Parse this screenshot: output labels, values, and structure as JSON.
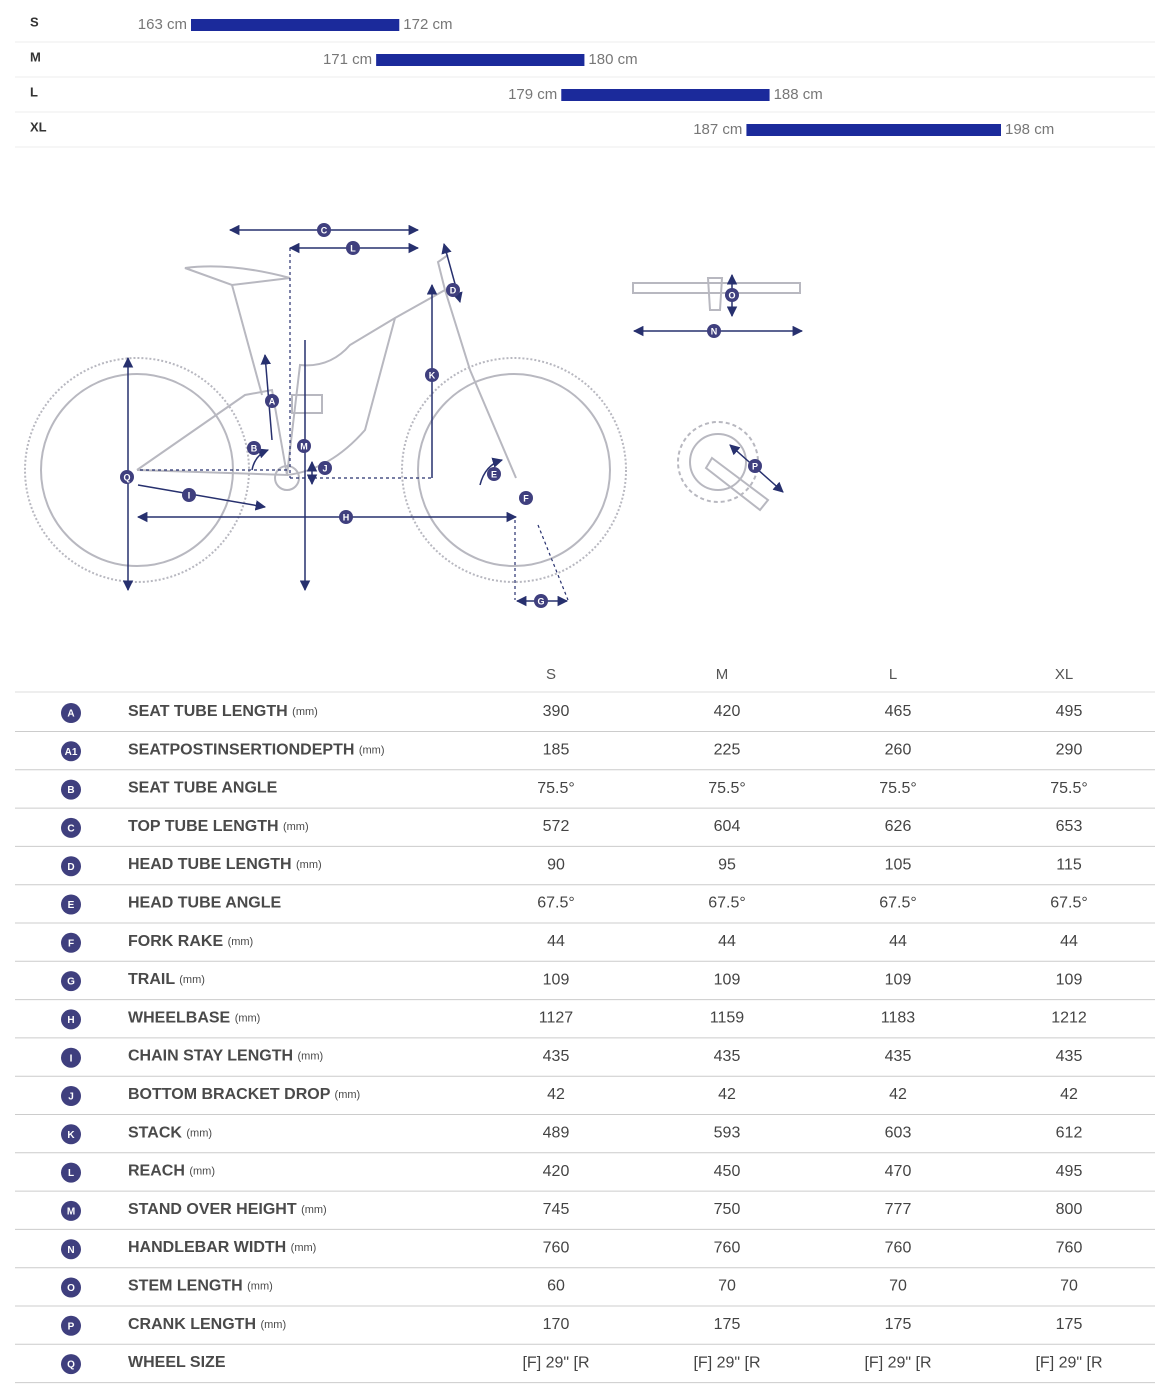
{
  "size_chart": {
    "rows": [
      {
        "size": "S",
        "min": 163,
        "max": 172,
        "min_label": "163 cm",
        "max_label": "172 cm"
      },
      {
        "size": "M",
        "min": 171,
        "max": 180,
        "min_label": "171 cm",
        "max_label": "180 cm"
      },
      {
        "size": "L",
        "min": 179,
        "max": 188,
        "min_label": "179 cm",
        "max_label": "188 cm"
      },
      {
        "size": "XL",
        "min": 187,
        "max": 198,
        "min_label": "187 cm",
        "max_label": "198 cm"
      }
    ]
  },
  "table": {
    "header": [
      "S",
      "M",
      "L",
      "XL"
    ],
    "rows": [
      {
        "code": "A",
        "name": "SEAT TUBE LENGTH",
        "unit": "(mm)",
        "values": [
          "390",
          "420",
          "465",
          "495"
        ]
      },
      {
        "code": "A1",
        "name": "SEATPOSTINSERTIONDEPTH",
        "unit": "(mm)",
        "values": [
          "185",
          "225",
          "260",
          "290"
        ]
      },
      {
        "code": "B",
        "name": "SEAT TUBE ANGLE",
        "values": [
          "75.5°",
          "75.5°",
          "75.5°",
          "75.5°"
        ]
      },
      {
        "code": "C",
        "name": "TOP TUBE LENGTH",
        "unit": "(mm)",
        "values": [
          "572",
          "604",
          "626",
          "653"
        ]
      },
      {
        "code": "D",
        "name": "HEAD TUBE LENGTH",
        "unit": "(mm)",
        "values": [
          "90",
          "95",
          "105",
          "115"
        ]
      },
      {
        "code": "E",
        "name": "HEAD TUBE ANGLE",
        "values": [
          "67.5°",
          "67.5°",
          "67.5°",
          "67.5°"
        ]
      },
      {
        "code": "F",
        "name": "FORK RAKE",
        "unit": "(mm)",
        "values": [
          "44",
          "44",
          "44",
          "44"
        ]
      },
      {
        "code": "G",
        "name": "TRAIL",
        "unit": "(mm)",
        "values": [
          "109",
          "109",
          "109",
          "109"
        ]
      },
      {
        "code": "H",
        "name": "WHEELBASE",
        "unit": "(mm)",
        "values": [
          "1127",
          "1159",
          "1183",
          "1212"
        ]
      },
      {
        "code": "I",
        "name": "CHAIN STAY LENGTH",
        "unit": "(mm)",
        "values": [
          "435",
          "435",
          "435",
          "435"
        ]
      },
      {
        "code": "J",
        "name": "BOTTOM BRACKET DROP",
        "unit": "(mm)",
        "values": [
          "42",
          "42",
          "42",
          "42"
        ]
      },
      {
        "code": "K",
        "name": "STACK",
        "unit": "(mm)",
        "values": [
          "489",
          "593",
          "603",
          "612"
        ]
      },
      {
        "code": "L",
        "name": "REACH",
        "unit": "(mm)",
        "values": [
          "420",
          "450",
          "470",
          "495"
        ]
      },
      {
        "code": "M",
        "name": "STAND OVER HEIGHT",
        "unit": "(mm)",
        "values": [
          "745",
          "750",
          "777",
          "800"
        ]
      },
      {
        "code": "N",
        "name": "HANDLEBAR WIDTH",
        "unit": "(mm)",
        "values": [
          "760",
          "760",
          "760",
          "760"
        ]
      },
      {
        "code": "O",
        "name": "STEM LENGTH",
        "unit": "(mm)",
        "values": [
          "60",
          "70",
          "70",
          "70"
        ]
      },
      {
        "code": "P",
        "name": "CRANK LENGTH",
        "unit": "(mm)",
        "values": [
          "170",
          "175",
          "175",
          "175"
        ]
      },
      {
        "code": "Q",
        "name": "WHEEL SIZE",
        "values": [
          "[F] 29\" [R",
          "[F] 29\" [R",
          "[F] 29\" [R",
          "[F] 29\" [R"
        ]
      }
    ]
  }
}
